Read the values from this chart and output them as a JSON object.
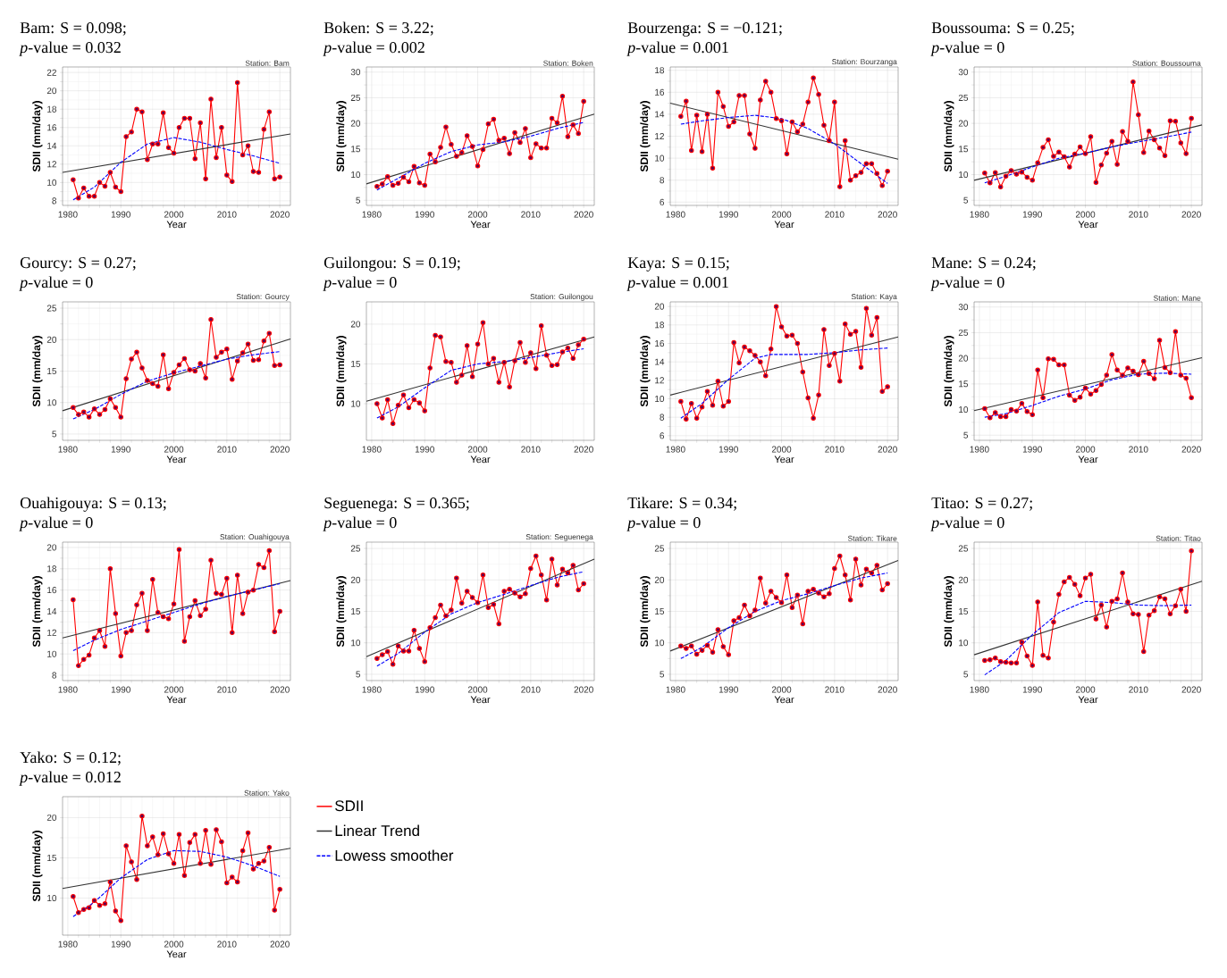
{
  "chart_data": [
    {
      "type": "line",
      "title": "Bam: S = 0.098;",
      "subtitle": "*p*-value = 0.032",
      "xlabel": "Year",
      "ylabel": "SDII (mm/day)",
      "annotations": [
        "Station: Bam"
      ],
      "grid": true,
      "xlim": [
        1979,
        2022
      ],
      "ylim": [
        7.5,
        22.6
      ],
      "xticks": [
        1980,
        1990,
        2000,
        2010,
        2020
      ],
      "yticks": [
        8,
        10,
        12,
        14,
        16,
        18,
        20,
        22
      ],
      "x": [
        1981,
        1982,
        1983,
        1984,
        1985,
        1986,
        1987,
        1988,
        1989,
        1990,
        1991,
        1992,
        1993,
        1994,
        1995,
        1996,
        1997,
        1998,
        1999,
        2000,
        2001,
        2002,
        2003,
        2004,
        2005,
        2006,
        2007,
        2008,
        2009,
        2010,
        2011,
        2012,
        2013,
        2014,
        2015,
        2016,
        2017,
        2018,
        2019,
        2020
      ],
      "series": [
        {
          "color": "#ff0000",
          "marker": "circle",
          "line_style": "solid",
          "values": [
            10.3,
            8.3,
            9.4,
            8.5,
            8.5,
            10.0,
            9.6,
            11.1,
            9.5,
            9.0,
            15.0,
            15.5,
            18.0,
            17.7,
            12.5,
            14.2,
            14.2,
            17.6,
            13.8,
            13.2,
            16.0,
            17.0,
            17.0,
            12.6,
            16.5,
            10.4,
            19.1,
            12.7,
            16.0,
            10.8,
            10.1,
            20.9,
            13.0,
            14.0,
            11.2,
            11.1,
            15.8,
            17.7,
            10.4,
            10.6
          ]
        },
        {
          "color": "#333333",
          "marker": "none",
          "line_style": "solid",
          "x": [
            1979,
            2022
          ],
          "values": [
            11.1,
            15.3
          ]
        },
        {
          "color": "#0000ff",
          "marker": "none",
          "line_style": "dashed",
          "x": [
            1981,
            1985,
            1990,
            1995,
            2000,
            2005,
            2010,
            2015,
            2020
          ],
          "values": [
            8.1,
            9.5,
            12.2,
            14.2,
            14.9,
            14.4,
            13.6,
            12.9,
            12.1
          ]
        }
      ]
    },
    {
      "type": "line",
      "title": "Boken: S = 3.22;",
      "subtitle": "*p*-value = 0.002",
      "xlabel": "Year",
      "ylabel": "SDII (mm/day)",
      "annotations": [
        "Station: Boken"
      ],
      "grid": true,
      "xlim": [
        1979,
        2022
      ],
      "ylim": [
        4,
        31
      ],
      "xticks": [
        1980,
        1990,
        2000,
        2010,
        2020
      ],
      "yticks": [
        5,
        10,
        15,
        20,
        25,
        30
      ],
      "x": [
        1981,
        1982,
        1983,
        1984,
        1985,
        1986,
        1987,
        1988,
        1989,
        1990,
        1991,
        1992,
        1993,
        1994,
        1995,
        1996,
        1997,
        1998,
        1999,
        2000,
        2001,
        2002,
        2003,
        2004,
        2005,
        2006,
        2007,
        2008,
        2009,
        2010,
        2011,
        2012,
        2013,
        2014,
        2015,
        2016,
        2017,
        2018,
        2019,
        2020
      ],
      "series": [
        {
          "color": "#ff0000",
          "marker": "circle",
          "line_style": "solid",
          "values": [
            7.7,
            8.2,
            9.6,
            7.9,
            8.3,
            9.5,
            8.6,
            11.6,
            8.4,
            7.9,
            14.0,
            12.5,
            15.3,
            19.3,
            15.9,
            13.6,
            14.3,
            17.6,
            15.5,
            11.7,
            14.9,
            19.9,
            20.8,
            16.7,
            17.1,
            14.1,
            18.2,
            16.3,
            19.0,
            13.3,
            16.0,
            15.2,
            15.2,
            21.0,
            20.1,
            25.3,
            17.4,
            19.7,
            18.0,
            24.3
          ]
        },
        {
          "color": "#333333",
          "marker": "none",
          "line_style": "solid",
          "x": [
            1979,
            2022
          ],
          "values": [
            8.2,
            21.8
          ]
        },
        {
          "color": "#0000ff",
          "marker": "none",
          "line_style": "dashed",
          "x": [
            1981,
            1985,
            1990,
            1995,
            2000,
            2005,
            2010,
            2015,
            2020
          ],
          "values": [
            7.0,
            9.3,
            12.2,
            14.5,
            15.8,
            16.4,
            17.5,
            19.0,
            20.2
          ]
        }
      ]
    },
    {
      "type": "line",
      "title": "Bourzenga: S = −0.121;",
      "subtitle": "*p*-value = 0.001",
      "xlabel": "Year",
      "ylabel": "SDII (mm/day)",
      "annotations": [
        "Station: Bourzanga"
      ],
      "grid": true,
      "xlim": [
        1979,
        2022
      ],
      "ylim": [
        5.7,
        18.3
      ],
      "xticks": [
        1980,
        1990,
        2000,
        2010,
        2020
      ],
      "yticks": [
        6,
        8,
        10,
        12,
        14,
        16,
        18
      ],
      "x": [
        1981,
        1982,
        1983,
        1984,
        1985,
        1986,
        1987,
        1988,
        1989,
        1990,
        1991,
        1992,
        1993,
        1994,
        1995,
        1996,
        1997,
        1998,
        1999,
        2000,
        2001,
        2002,
        2003,
        2004,
        2005,
        2006,
        2007,
        2008,
        2009,
        2010,
        2011,
        2012,
        2013,
        2014,
        2015,
        2016,
        2017,
        2018,
        2019,
        2020
      ],
      "series": [
        {
          "color": "#ff0000",
          "marker": "circle",
          "line_style": "solid",
          "values": [
            13.8,
            15.2,
            10.7,
            13.9,
            10.6,
            14.0,
            9.1,
            16.0,
            14.7,
            12.9,
            13.3,
            15.7,
            15.7,
            12.2,
            10.9,
            15.3,
            17.0,
            16.0,
            13.6,
            13.4,
            10.4,
            13.3,
            12.4,
            13.1,
            15.1,
            17.3,
            15.8,
            13.0,
            11.6,
            15.1,
            7.4,
            11.6,
            8.0,
            8.4,
            8.7,
            9.5,
            9.5,
            8.6,
            7.5,
            8.8
          ]
        },
        {
          "color": "#333333",
          "marker": "none",
          "line_style": "solid",
          "x": [
            1979,
            2022
          ],
          "values": [
            15.0,
            9.9
          ]
        },
        {
          "color": "#0000ff",
          "marker": "none",
          "line_style": "dashed",
          "x": [
            1981,
            1985,
            1990,
            1995,
            2000,
            2005,
            2010,
            2015,
            2020
          ],
          "values": [
            13.1,
            13.4,
            13.7,
            13.9,
            13.6,
            12.7,
            11.3,
            9.5,
            7.7
          ]
        }
      ]
    },
    {
      "type": "line",
      "title": "Boussouma: S = 0.25;",
      "subtitle": "*p*-value = 0",
      "xlabel": "Year",
      "ylabel": "SDII (mm/day)",
      "annotations": [
        "Station: Boussouma"
      ],
      "grid": true,
      "xlim": [
        1979,
        2022
      ],
      "ylim": [
        4,
        31
      ],
      "xticks": [
        1980,
        1990,
        2000,
        2010,
        2020
      ],
      "yticks": [
        5,
        10,
        15,
        20,
        25,
        30
      ],
      "x": [
        1981,
        1982,
        1983,
        1984,
        1985,
        1986,
        1987,
        1988,
        1989,
        1990,
        1991,
        1992,
        1993,
        1994,
        1995,
        1996,
        1997,
        1998,
        1999,
        2000,
        2001,
        2002,
        2003,
        2004,
        2005,
        2006,
        2007,
        2008,
        2009,
        2010,
        2011,
        2012,
        2013,
        2014,
        2015,
        2016,
        2017,
        2018,
        2019,
        2020
      ],
      "series": [
        {
          "color": "#ff0000",
          "marker": "circle",
          "line_style": "solid",
          "values": [
            10.3,
            8.4,
            10.4,
            7.6,
            9.7,
            10.8,
            10.1,
            10.5,
            9.5,
            8.9,
            12.3,
            15.3,
            16.8,
            13.6,
            14.4,
            13.5,
            11.5,
            14.0,
            15.4,
            14.1,
            17.4,
            8.5,
            11.9,
            14.2,
            16.5,
            12.0,
            18.4,
            16.5,
            28.1,
            21.7,
            14.3,
            18.5,
            16.8,
            15.2,
            13.7,
            20.5,
            20.4,
            16.2,
            14.1,
            21.0
          ]
        },
        {
          "color": "#333333",
          "marker": "none",
          "line_style": "solid",
          "x": [
            1979,
            2022
          ],
          "values": [
            8.9,
            19.7
          ]
        },
        {
          "color": "#0000ff",
          "marker": "none",
          "line_style": "dashed",
          "x": [
            1981,
            1985,
            1990,
            1995,
            2000,
            2005,
            2010,
            2015,
            2020
          ],
          "values": [
            8.4,
            9.7,
            11.5,
            13.2,
            14.2,
            15.4,
            16.4,
            17.3,
            18.3
          ]
        }
      ]
    },
    {
      "type": "line",
      "title": "Gourcy: S = 0.27;",
      "subtitle": "*p*-value = 0",
      "xlabel": "Year",
      "ylabel": "SDII (mm/day)",
      "annotations": [
        "Station: Gourcy"
      ],
      "grid": true,
      "xlim": [
        1979,
        2022
      ],
      "ylim": [
        4,
        26
      ],
      "xticks": [
        1980,
        1990,
        2000,
        2010,
        2020
      ],
      "yticks": [
        5,
        10,
        15,
        20,
        25
      ],
      "x": [
        1981,
        1982,
        1983,
        1984,
        1985,
        1986,
        1987,
        1988,
        1989,
        1990,
        1991,
        1992,
        1993,
        1994,
        1995,
        1996,
        1997,
        1998,
        1999,
        2000,
        2001,
        2002,
        2003,
        2004,
        2005,
        2006,
        2007,
        2008,
        2009,
        2010,
        2011,
        2012,
        2013,
        2014,
        2015,
        2016,
        2017,
        2018,
        2019,
        2020
      ],
      "series": [
        {
          "color": "#ff0000",
          "marker": "circle",
          "line_style": "solid",
          "values": [
            9.2,
            8.1,
            8.5,
            7.7,
            9.0,
            8.1,
            8.9,
            10.6,
            9.2,
            7.7,
            13.8,
            16.9,
            18.0,
            15.5,
            13.5,
            13.0,
            12.6,
            17.6,
            12.2,
            14.8,
            16.0,
            17.0,
            15.2,
            15.0,
            16.2,
            13.9,
            23.2,
            17.2,
            18.0,
            18.5,
            13.7,
            16.6,
            17.9,
            19.3,
            16.7,
            16.8,
            19.8,
            21.0,
            15.9,
            16.0
          ]
        },
        {
          "color": "#333333",
          "marker": "none",
          "line_style": "solid",
          "x": [
            1979,
            2022
          ],
          "values": [
            8.7,
            20.1
          ]
        },
        {
          "color": "#0000ff",
          "marker": "none",
          "line_style": "dashed",
          "x": [
            1981,
            1985,
            1990,
            1995,
            2000,
            2005,
            2010,
            2015,
            2020
          ],
          "values": [
            7.4,
            8.9,
            11.3,
            13.4,
            14.7,
            15.8,
            16.9,
            17.6,
            18.1
          ]
        }
      ]
    },
    {
      "type": "line",
      "title": "Guilongou: S = 0.19;",
      "subtitle": "*p*-value = 0",
      "xlabel": "Year",
      "ylabel": "SDII (mm/day)",
      "annotations": [
        "Station: Guilongou"
      ],
      "grid": true,
      "xlim": [
        1979,
        2022
      ],
      "ylim": [
        5.4,
        22.8
      ],
      "xticks": [
        1980,
        1990,
        2000,
        2010,
        2020
      ],
      "yticks": [
        10,
        15,
        20
      ],
      "x": [
        1981,
        1982,
        1983,
        1984,
        1985,
        1986,
        1987,
        1988,
        1989,
        1990,
        1991,
        1992,
        1993,
        1994,
        1995,
        1996,
        1997,
        1998,
        1999,
        2000,
        2001,
        2002,
        2003,
        2004,
        2005,
        2006,
        2007,
        2008,
        2009,
        2010,
        2011,
        2012,
        2013,
        2014,
        2015,
        2016,
        2017,
        2018,
        2019,
        2020
      ],
      "series": [
        {
          "color": "#ff0000",
          "marker": "circle",
          "line_style": "solid",
          "values": [
            10.0,
            8.2,
            10.5,
            7.5,
            9.8,
            11.1,
            9.5,
            10.5,
            10.1,
            9.1,
            14.5,
            18.6,
            18.4,
            15.3,
            15.2,
            12.7,
            13.6,
            17.3,
            13.4,
            17.5,
            20.2,
            15.0,
            15.7,
            12.7,
            15.2,
            12.1,
            15.4,
            17.7,
            15.2,
            16.4,
            14.4,
            19.8,
            16.1,
            14.8,
            14.9,
            16.5,
            17.0,
            15.7,
            17.4,
            18.1
          ]
        },
        {
          "color": "#333333",
          "marker": "none",
          "line_style": "solid",
          "x": [
            1979,
            2022
          ],
          "values": [
            10.3,
            18.4
          ]
        },
        {
          "color": "#0000ff",
          "marker": "none",
          "line_style": "dashed",
          "x": [
            1981,
            1985,
            1990,
            1995,
            2000,
            2005,
            2010,
            2015,
            2020
          ],
          "values": [
            8.2,
            9.6,
            12.0,
            14.2,
            15.0,
            15.3,
            15.8,
            16.4,
            16.9
          ]
        }
      ]
    },
    {
      "type": "line",
      "title": "Kaya: S = 0.15;",
      "subtitle": "*p*-value = 0.001",
      "xlabel": "Year",
      "ylabel": "SDII (mm/day)",
      "annotations": [
        "Station: Kaya"
      ],
      "grid": true,
      "xlim": [
        1979,
        2022
      ],
      "ylim": [
        5.5,
        20.5
      ],
      "xticks": [
        1980,
        1990,
        2000,
        2010,
        2020
      ],
      "yticks": [
        6,
        8,
        10,
        12,
        14,
        16,
        18,
        20
      ],
      "x": [
        1981,
        1982,
        1983,
        1984,
        1985,
        1986,
        1987,
        1988,
        1989,
        1990,
        1991,
        1992,
        1993,
        1994,
        1995,
        1996,
        1997,
        1998,
        1999,
        2000,
        2001,
        2002,
        2003,
        2004,
        2005,
        2006,
        2007,
        2008,
        2009,
        2010,
        2011,
        2012,
        2013,
        2014,
        2015,
        2016,
        2017,
        2018,
        2019,
        2020
      ],
      "series": [
        {
          "color": "#ff0000",
          "marker": "circle",
          "line_style": "solid",
          "values": [
            9.7,
            7.8,
            9.5,
            7.9,
            9.1,
            10.8,
            9.3,
            11.9,
            9.2,
            9.7,
            16.1,
            13.9,
            15.6,
            15.2,
            14.7,
            14.0,
            12.5,
            15.4,
            20.0,
            17.8,
            16.8,
            16.9,
            16.0,
            12.9,
            10.1,
            7.9,
            10.4,
            17.5,
            13.6,
            14.9,
            11.9,
            18.1,
            17.0,
            17.3,
            13.4,
            19.8,
            16.9,
            18.8,
            10.8,
            11.3
          ]
        },
        {
          "color": "#333333",
          "marker": "none",
          "line_style": "solid",
          "x": [
            1979,
            2022
          ],
          "values": [
            10.4,
            16.7
          ]
        },
        {
          "color": "#0000ff",
          "marker": "none",
          "line_style": "dashed",
          "x": [
            1981,
            1985,
            1990,
            1995,
            1998,
            2005,
            2010,
            2015,
            2020
          ],
          "values": [
            7.9,
            9.5,
            12.1,
            14.4,
            14.8,
            14.8,
            15.0,
            15.3,
            15.5
          ]
        }
      ]
    },
    {
      "type": "line",
      "title": "Mane: S = 0.24;",
      "subtitle": "*p*-value = 0",
      "xlabel": "Year",
      "ylabel": "SDII (mm/day)",
      "annotations": [
        "Station: Mane"
      ],
      "grid": true,
      "xlim": [
        1979,
        2022
      ],
      "ylim": [
        4,
        31
      ],
      "xticks": [
        1980,
        1990,
        2000,
        2010,
        2020
      ],
      "yticks": [
        5,
        10,
        15,
        20,
        25,
        30
      ],
      "x": [
        1981,
        1982,
        1983,
        1984,
        1985,
        1986,
        1987,
        1988,
        1989,
        1990,
        1991,
        1992,
        1993,
        1994,
        1995,
        1996,
        1997,
        1998,
        1999,
        2000,
        2001,
        2002,
        2003,
        2004,
        2005,
        2006,
        2007,
        2008,
        2009,
        2010,
        2011,
        2012,
        2013,
        2014,
        2015,
        2016,
        2017,
        2018,
        2019,
        2020
      ],
      "series": [
        {
          "color": "#ff0000",
          "marker": "circle",
          "line_style": "solid",
          "values": [
            10.2,
            8.4,
            9.4,
            8.6,
            8.6,
            10.0,
            9.7,
            11.2,
            9.6,
            9.0,
            17.7,
            12.3,
            19.9,
            19.8,
            18.7,
            18.7,
            12.8,
            11.8,
            12.4,
            14.2,
            13.0,
            13.7,
            14.9,
            16.7,
            20.7,
            17.7,
            16.7,
            18.1,
            17.5,
            16.8,
            19.4,
            17.0,
            16.0,
            23.5,
            18.2,
            17.2,
            25.2,
            16.7,
            16.1,
            12.3
          ]
        },
        {
          "color": "#333333",
          "marker": "none",
          "line_style": "solid",
          "x": [
            1979,
            2022
          ],
          "values": [
            9.8,
            20.1
          ]
        },
        {
          "color": "#0000ff",
          "marker": "none",
          "line_style": "dashed",
          "x": [
            1981,
            1985,
            1990,
            1995,
            2000,
            2005,
            2010,
            2015,
            2020
          ],
          "values": [
            8.5,
            9.2,
            10.8,
            12.6,
            14.0,
            15.8,
            16.9,
            17.1,
            16.9
          ]
        }
      ]
    },
    {
      "type": "line",
      "title": "Ouahigouya: S = 0.13;",
      "subtitle": "*p*-value = 0",
      "xlabel": "Year",
      "ylabel": "SDII (mm/day)",
      "annotations": [
        "Station: Ouahigouya"
      ],
      "grid": true,
      "xlim": [
        1979,
        2022
      ],
      "ylim": [
        7.5,
        20.5
      ],
      "xticks": [
        1980,
        1990,
        2000,
        2010,
        2020
      ],
      "yticks": [
        8,
        10,
        12,
        14,
        16,
        18,
        20
      ],
      "x": [
        1981,
        1982,
        1983,
        1984,
        1985,
        1986,
        1987,
        1988,
        1989,
        1990,
        1991,
        1992,
        1993,
        1994,
        1995,
        1996,
        1997,
        1998,
        1999,
        2000,
        2001,
        2002,
        2003,
        2004,
        2005,
        2006,
        2007,
        2008,
        2009,
        2010,
        2011,
        2012,
        2013,
        2014,
        2015,
        2016,
        2017,
        2018,
        2019,
        2020
      ],
      "series": [
        {
          "color": "#ff0000",
          "marker": "circle",
          "line_style": "solid",
          "values": [
            15.1,
            8.9,
            9.5,
            9.9,
            11.5,
            12.2,
            10.7,
            18.0,
            13.8,
            9.8,
            12.0,
            12.2,
            14.6,
            15.7,
            12.2,
            17.0,
            13.9,
            13.5,
            13.3,
            14.7,
            19.8,
            11.2,
            13.5,
            15.0,
            13.6,
            14.2,
            18.8,
            15.7,
            15.6,
            17.1,
            12.0,
            17.4,
            13.8,
            15.8,
            16.0,
            18.4,
            18.1,
            19.7,
            12.1,
            14.0
          ]
        },
        {
          "color": "#333333",
          "marker": "none",
          "line_style": "solid",
          "x": [
            1979,
            2022
          ],
          "values": [
            11.5,
            16.9
          ]
        },
        {
          "color": "#0000ff",
          "marker": "none",
          "line_style": "dashed",
          "x": [
            1981,
            1985,
            1990,
            1995,
            2000,
            2005,
            2010,
            2015,
            2020
          ],
          "values": [
            10.3,
            11.3,
            12.3,
            13.1,
            13.9,
            14.7,
            15.4,
            16.0,
            16.6
          ]
        }
      ]
    },
    {
      "type": "line",
      "title": "Seguenega: S = 0.365;",
      "subtitle": "*p*-value = 0",
      "xlabel": "Year",
      "ylabel": "SDII (mm/day)",
      "annotations": [
        "Station: Seguenega"
      ],
      "grid": true,
      "xlim": [
        1979,
        2022
      ],
      "ylim": [
        4,
        26
      ],
      "xticks": [
        1980,
        1990,
        2000,
        2010,
        2020
      ],
      "yticks": [
        5,
        10,
        15,
        20,
        25
      ],
      "x": [
        1981,
        1982,
        1983,
        1984,
        1985,
        1986,
        1987,
        1988,
        1989,
        1990,
        1991,
        1992,
        1993,
        1994,
        1995,
        1996,
        1997,
        1998,
        1999,
        2000,
        2001,
        2002,
        2003,
        2004,
        2005,
        2006,
        2007,
        2008,
        2009,
        2010,
        2011,
        2012,
        2013,
        2014,
        2015,
        2016,
        2017,
        2018,
        2019,
        2020
      ],
      "series": [
        {
          "color": "#ff0000",
          "marker": "circle",
          "line_style": "solid",
          "values": [
            7.5,
            8.1,
            8.6,
            6.6,
            9.5,
            8.7,
            8.7,
            12.0,
            9.1,
            7.0,
            12.4,
            14.0,
            16.0,
            14.3,
            15.2,
            20.3,
            16.3,
            18.2,
            17.2,
            16.4,
            20.8,
            15.6,
            16.1,
            13.0,
            18.2,
            18.5,
            17.9,
            17.3,
            17.8,
            21.8,
            23.8,
            20.8,
            16.8,
            23.3,
            19.2,
            21.7,
            21.1,
            22.3,
            18.4,
            19.4
          ]
        },
        {
          "color": "#333333",
          "marker": "none",
          "line_style": "solid",
          "x": [
            1979,
            2022
          ],
          "values": [
            7.8,
            23.3
          ]
        },
        {
          "color": "#0000ff",
          "marker": "none",
          "line_style": "dashed",
          "x": [
            1981,
            1985,
            1990,
            1995,
            2000,
            2005,
            2010,
            2015,
            2020
          ],
          "values": [
            6.3,
            8.3,
            11.7,
            14.6,
            16.4,
            17.7,
            19.1,
            20.4,
            21.3
          ]
        }
      ]
    },
    {
      "type": "line",
      "title": "Tikare: S = 0.34;",
      "subtitle": "*p*-value = 0",
      "xlabel": "Year",
      "ylabel": "SDII (mm/day)",
      "annotations": [
        "Station: Tikare"
      ],
      "grid": true,
      "xlim": [
        1979,
        2022
      ],
      "ylim": [
        4,
        26
      ],
      "xticks": [
        1980,
        1990,
        2000,
        2010,
        2020
      ],
      "yticks": [
        5,
        10,
        15,
        20,
        25
      ],
      "x": [
        1981,
        1982,
        1983,
        1984,
        1985,
        1986,
        1987,
        1988,
        1989,
        1990,
        1991,
        1992,
        1993,
        1994,
        1995,
        1996,
        1997,
        1998,
        1999,
        2000,
        2001,
        2002,
        2003,
        2004,
        2005,
        2006,
        2007,
        2008,
        2009,
        2010,
        2011,
        2012,
        2013,
        2014,
        2015,
        2016,
        2017,
        2018,
        2019,
        2020
      ],
      "series": [
        {
          "color": "#ff0000",
          "marker": "circle",
          "line_style": "solid",
          "values": [
            9.5,
            9.1,
            9.5,
            8.2,
            8.8,
            9.6,
            8.5,
            12.1,
            9.4,
            8.1,
            13.5,
            14.0,
            16.0,
            14.3,
            15.2,
            20.3,
            16.3,
            18.2,
            17.2,
            16.4,
            20.8,
            15.6,
            17.6,
            13.0,
            18.2,
            18.5,
            17.9,
            17.3,
            17.8,
            21.8,
            23.8,
            20.8,
            16.8,
            23.3,
            19.2,
            21.7,
            21.1,
            22.3,
            18.4,
            19.4
          ]
        },
        {
          "color": "#333333",
          "marker": "none",
          "line_style": "solid",
          "x": [
            1979,
            2022
          ],
          "values": [
            8.7,
            23.1
          ]
        },
        {
          "color": "#0000ff",
          "marker": "none",
          "line_style": "dashed",
          "x": [
            1981,
            1985,
            1990,
            1995,
            2000,
            2005,
            2010,
            2015,
            2020
          ],
          "values": [
            7.5,
            9.3,
            12.4,
            15.0,
            16.7,
            17.8,
            19.1,
            20.3,
            21.1
          ]
        }
      ]
    },
    {
      "type": "line",
      "title": "Titao: S = 0.27;",
      "subtitle": "*p*-value = 0",
      "xlabel": "Year",
      "ylabel": "SDII (mm/day)",
      "annotations": [
        "Station: Titao"
      ],
      "grid": true,
      "xlim": [
        1979,
        2022
      ],
      "ylim": [
        4,
        26
      ],
      "xticks": [
        1980,
        1990,
        2000,
        2010,
        2020
      ],
      "yticks": [
        5,
        10,
        15,
        20,
        25
      ],
      "x": [
        1981,
        1982,
        1983,
        1984,
        1985,
        1986,
        1987,
        1988,
        1989,
        1990,
        1991,
        1992,
        1993,
        1994,
        1995,
        1996,
        1997,
        1998,
        1999,
        2000,
        2001,
        2002,
        2003,
        2004,
        2005,
        2006,
        2007,
        2008,
        2009,
        2010,
        2011,
        2012,
        2013,
        2014,
        2015,
        2016,
        2017,
        2018,
        2019,
        2020
      ],
      "series": [
        {
          "color": "#ff0000",
          "marker": "circle",
          "line_style": "solid",
          "values": [
            7.2,
            7.3,
            7.6,
            7.0,
            6.9,
            6.8,
            6.8,
            10.1,
            7.9,
            6.4,
            16.5,
            8.0,
            7.6,
            13.3,
            17.7,
            19.7,
            20.4,
            19.3,
            17.5,
            20.3,
            20.9,
            13.8,
            16.0,
            12.5,
            16.6,
            17.0,
            21.1,
            16.5,
            14.6,
            14.5,
            8.6,
            14.4,
            15.1,
            17.3,
            17.0,
            14.6,
            15.9,
            18.5,
            15.0,
            24.6
          ]
        },
        {
          "color": "#333333",
          "marker": "none",
          "line_style": "solid",
          "x": [
            1979,
            2022
          ],
          "values": [
            8.1,
            19.8
          ]
        },
        {
          "color": "#0000ff",
          "marker": "none",
          "line_style": "dashed",
          "x": [
            1981,
            1985,
            1990,
            1995,
            2000,
            2005,
            2010,
            2015,
            2020
          ],
          "values": [
            4.9,
            7.2,
            11.3,
            14.8,
            16.6,
            16.4,
            16.0,
            15.9,
            16.0
          ]
        }
      ]
    },
    {
      "type": "line",
      "title": "Yako: S = 0.12;",
      "subtitle": "*p*-value = 0.012",
      "xlabel": "Year",
      "ylabel": "SDII (mm/day)",
      "annotations": [
        "Station: Yako"
      ],
      "grid": true,
      "legend": "right",
      "xlim": [
        1979,
        2022
      ],
      "ylim": [
        5.4,
        22.6
      ],
      "xticks": [
        1980,
        1990,
        2000,
        2010,
        2020
      ],
      "yticks": [
        10,
        15,
        20
      ],
      "x": [
        1981,
        1982,
        1983,
        1984,
        1985,
        1986,
        1987,
        1988,
        1989,
        1990,
        1991,
        1992,
        1993,
        1994,
        1995,
        1996,
        1997,
        1998,
        1999,
        2000,
        2001,
        2002,
        2003,
        2004,
        2005,
        2006,
        2007,
        2008,
        2009,
        2010,
        2011,
        2012,
        2013,
        2014,
        2015,
        2016,
        2017,
        2018,
        2019,
        2020
      ],
      "series": [
        {
          "name": "SDII",
          "color": "#ff0000",
          "marker": "circle",
          "line_style": "solid",
          "values": [
            10.2,
            8.2,
            8.6,
            8.8,
            9.7,
            9.1,
            9.3,
            12.0,
            8.4,
            7.2,
            16.5,
            14.5,
            12.3,
            20.2,
            16.5,
            17.6,
            15.4,
            18.0,
            15.5,
            14.3,
            17.9,
            12.8,
            16.9,
            17.9,
            14.3,
            18.4,
            14.2,
            18.5,
            17.0,
            11.9,
            12.6,
            12.0,
            15.9,
            18.1,
            13.6,
            14.3,
            14.6,
            16.3,
            8.5,
            11.1
          ]
        },
        {
          "name": "Linear Trend",
          "color": "#333333",
          "marker": "none",
          "line_style": "solid",
          "x": [
            1979,
            2022
          ],
          "values": [
            11.2,
            16.2
          ]
        },
        {
          "name": "Lowess smoother",
          "color": "#0000ff",
          "marker": "none",
          "line_style": "dashed",
          "x": [
            1981,
            1985,
            1990,
            1995,
            2000,
            2005,
            2010,
            2015,
            2020
          ],
          "values": [
            7.7,
            9.5,
            12.5,
            14.8,
            15.9,
            15.8,
            15.1,
            14.0,
            12.7
          ]
        }
      ]
    }
  ]
}
